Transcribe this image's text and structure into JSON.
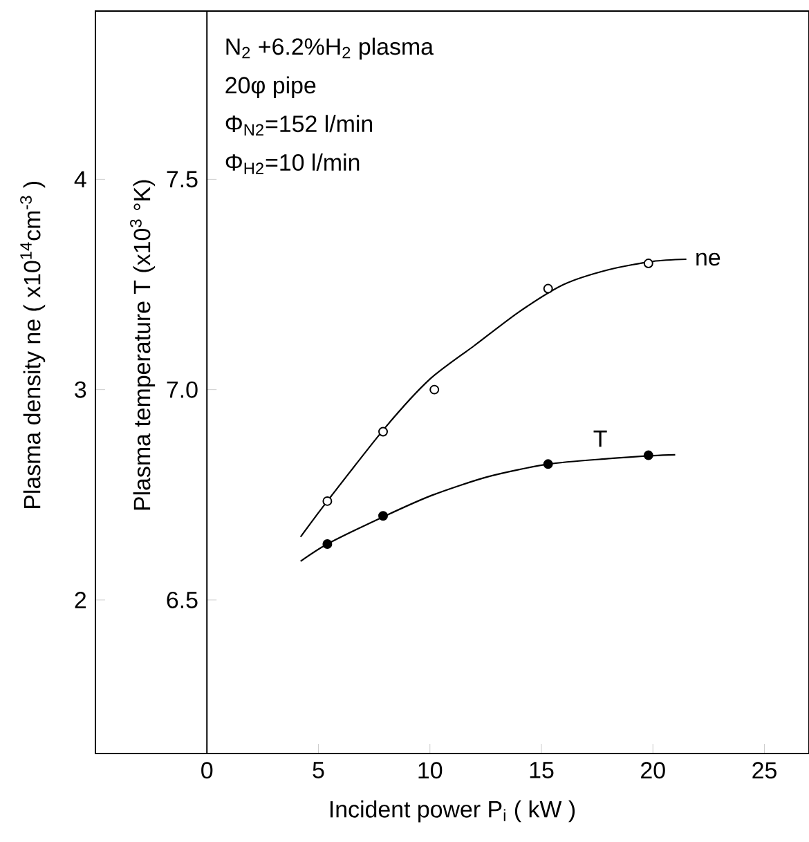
{
  "chart_data": {
    "type": "line",
    "xlabel": "Incident power   P$_{i}$   ( kW )",
    "ylabel": "Plasma  density   ne  ( x10$^{14}$cm$^{-3}$ )",
    "y2label": "Plasma  temperature  T  (x10$^{3}$ °K)",
    "annotations": [
      "N$_{2}$ +6.2%H$_{2}$  plasma",
      "20φ  pipe",
      "Φ$_{N2}$=152 l/min",
      "Φ$_{H2}$=10 l/min"
    ],
    "xlim": [
      -5,
      27
    ],
    "xticks": [
      0,
      5,
      10,
      15,
      20,
      25
    ],
    "ylim": [
      1.27,
      4.8
    ],
    "yticks": [
      2,
      3,
      4
    ],
    "y2lim": [
      6.135,
      7.9
    ],
    "y2ticks": [
      6.5,
      {
        "value": 7.0,
        "label": "7.0"
      },
      7.5
    ],
    "grid": false,
    "series": [
      {
        "type": "scatter",
        "axis": "y",
        "marker": "circle",
        "color": "#000000",
        "x": [
          5.4,
          7.9,
          10.2,
          15.3,
          19.8
        ],
        "values": [
          2.47,
          2.8,
          3.0,
          3.48,
          3.6
        ]
      },
      {
        "type": "line",
        "name": "ne",
        "axis": "y",
        "marker": "none",
        "color": "#000000",
        "x": [
          4.2,
          5.4,
          8,
          10,
          12,
          14,
          16,
          18,
          20,
          21.5
        ],
        "values": [
          2.3,
          2.47,
          2.82,
          3.05,
          3.21,
          3.37,
          3.5,
          3.57,
          3.61,
          3.62
        ]
      },
      {
        "type": "scatter",
        "axis": "y2",
        "marker": "circle",
        "color": "#000000",
        "x": [
          5.4,
          7.9,
          15.3,
          19.8
        ],
        "values": [
          6.633,
          6.7,
          6.823,
          6.844
        ]
      },
      {
        "type": "line",
        "name": "T",
        "axis": "y2",
        "marker": "none",
        "color": "#000000",
        "x": [
          4.2,
          5.4,
          8,
          10.1,
          12.6,
          15.3,
          18,
          20,
          21
        ],
        "values": [
          6.592,
          6.633,
          6.7,
          6.749,
          6.793,
          6.823,
          6.836,
          6.843,
          6.845
        ]
      }
    ]
  }
}
